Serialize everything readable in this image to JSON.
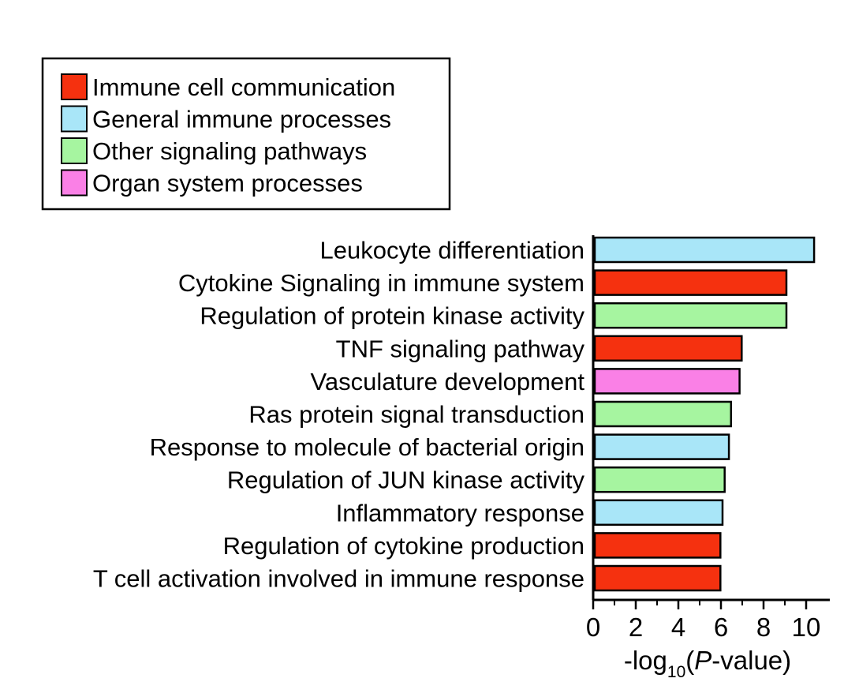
{
  "chart_data": {
    "type": "bar",
    "orientation": "horizontal",
    "categories": [
      "Leukocyte differentiation",
      "Cytokine Signaling in immune system",
      "Regulation of protein kinase activity",
      "TNF signaling pathway",
      "Vasculature development",
      "Ras protein signal transduction",
      "Response to molecule of bacterial origin",
      "Regulation of JUN kinase activity",
      "Inflammatory response",
      "Regulation of cytokine production",
      "T cell activation involved in immune response"
    ],
    "values": [
      10.3,
      9.0,
      9.0,
      6.9,
      6.8,
      6.4,
      6.3,
      6.1,
      6.0,
      5.9,
      5.9
    ],
    "groups": [
      "General immune processes",
      "Immune cell communication",
      "Other signaling pathways",
      "Immune cell communication",
      "Organ system processes",
      "Other signaling pathways",
      "General immune processes",
      "Other signaling pathways",
      "General immune processes",
      "Immune cell communication",
      "Immune cell communication"
    ],
    "legend": [
      {
        "name": "Immune cell communication",
        "color": "#f5310f"
      },
      {
        "name": "General immune processes",
        "color": "#a9e6f8"
      },
      {
        "name": "Other signaling pathways",
        "color": "#a6f5a0"
      },
      {
        "name": "Organ system processes",
        "color": "#fa80e6"
      }
    ],
    "legend_position": "top-left",
    "xlim": [
      0,
      10.6
    ],
    "xticks": [
      "0",
      "2",
      "4",
      "6",
      "8",
      "10"
    ],
    "xlabel": {
      "prefix": "-log",
      "subscript": "10",
      "suffix_open": "(",
      "italic": "P",
      "suffix": "-value)"
    },
    "ylabel": "",
    "title": "",
    "grid": false
  }
}
